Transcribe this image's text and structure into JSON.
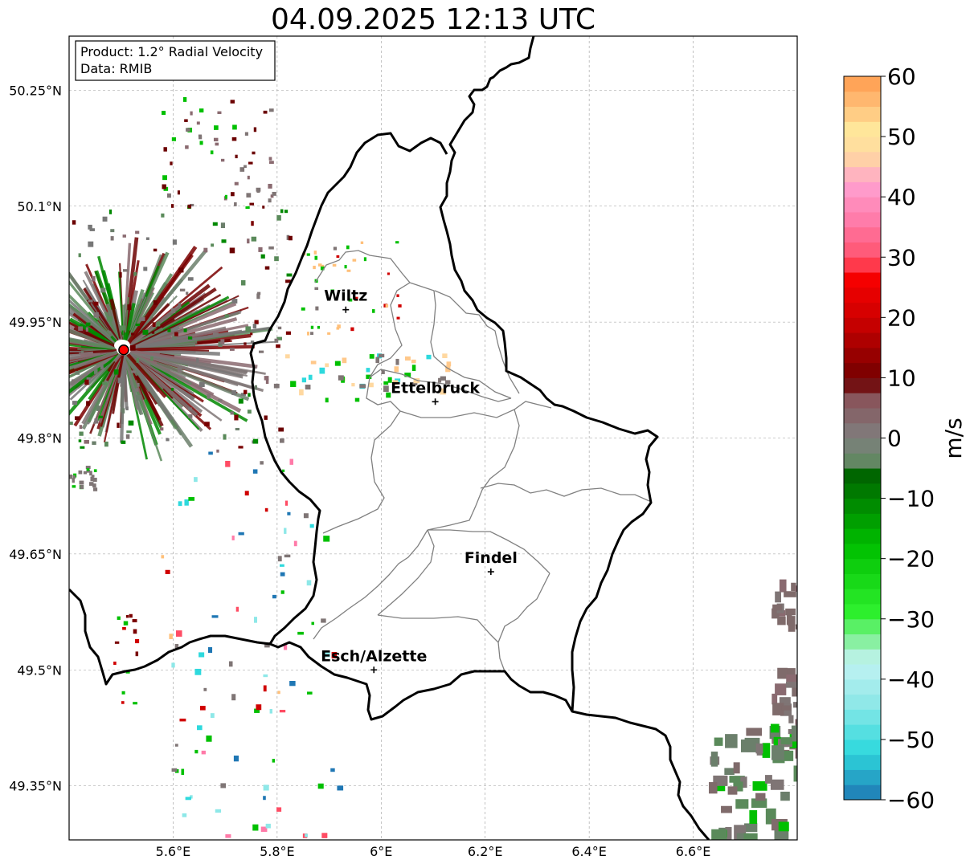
{
  "title": "04.09.2025 12:13 UTC",
  "info": {
    "product": "Product: 1.2° Radial Velocity",
    "data": "Data: RMIB"
  },
  "map_extent": {
    "lon": [
      5.4,
      6.8
    ],
    "lat": [
      49.28,
      50.32
    ]
  },
  "lat_ticks": [
    {
      "value": 50.25,
      "label": "50.25°N"
    },
    {
      "value": 50.1,
      "label": "50.1°N"
    },
    {
      "value": 49.95,
      "label": "49.95°N"
    },
    {
      "value": 49.8,
      "label": "49.8°N"
    },
    {
      "value": 49.65,
      "label": "49.65°N"
    },
    {
      "value": 49.5,
      "label": "49.5°N"
    },
    {
      "value": 49.35,
      "label": "49.35°N"
    }
  ],
  "lon_ticks": [
    {
      "value": 5.6,
      "label": "5.6°E"
    },
    {
      "value": 5.8,
      "label": "5.8°E"
    },
    {
      "value": 6.0,
      "label": "6°E"
    },
    {
      "value": 6.2,
      "label": "6.2°E"
    },
    {
      "value": 6.4,
      "label": "6.4°E"
    },
    {
      "value": 6.6,
      "label": "6.6°E"
    }
  ],
  "radar_site": {
    "lon": 5.505,
    "lat": 49.914
  },
  "cities": [
    {
      "name": "Wiltz",
      "lon": 5.932,
      "lat": 49.966
    },
    {
      "name": "Ettelbruck",
      "lon": 6.104,
      "lat": 49.847
    },
    {
      "name": "Findel",
      "lon": 6.211,
      "lat": 49.627
    },
    {
      "name": "Esch/Alzette",
      "lon": 5.986,
      "lat": 49.5
    }
  ],
  "colorbar": {
    "unit": "m/s",
    "min": -60,
    "max": 60,
    "ticks": [
      {
        "value": 60,
        "label": "60"
      },
      {
        "value": 50,
        "label": "50"
      },
      {
        "value": 40,
        "label": "40"
      },
      {
        "value": 30,
        "label": "30"
      },
      {
        "value": 20,
        "label": "20"
      },
      {
        "value": 10,
        "label": "10"
      },
      {
        "value": 0,
        "label": "0"
      },
      {
        "value": -10,
        "label": "−10"
      },
      {
        "value": -20,
        "label": "−20"
      },
      {
        "value": -30,
        "label": "−30"
      },
      {
        "value": -40,
        "label": "−40"
      },
      {
        "value": -50,
        "label": "−50"
      },
      {
        "value": -60,
        "label": "−60"
      }
    ],
    "stops": [
      {
        "value": -60,
        "color": "#1f77b4"
      },
      {
        "value": -52,
        "color": "#2ed9dd"
      },
      {
        "value": -44,
        "color": "#8ee8e8"
      },
      {
        "value": -37,
        "color": "#c3f2f2"
      },
      {
        "value": -34,
        "color": "#8ef0a8"
      },
      {
        "value": -29,
        "color": "#2ef02e"
      },
      {
        "value": -18,
        "color": "#00c000"
      },
      {
        "value": -6,
        "color": "#006400"
      },
      {
        "value": -5,
        "color": "#5a8a5a"
      },
      {
        "value": 0,
        "color": "#7f7f7f"
      },
      {
        "value": 8,
        "color": "#8a4a52"
      },
      {
        "value": 9,
        "color": "#6b0000"
      },
      {
        "value": 20,
        "color": "#d00000"
      },
      {
        "value": 28,
        "color": "#ff0000"
      },
      {
        "value": 29,
        "color": "#ff4c64"
      },
      {
        "value": 36,
        "color": "#ff7aa8"
      },
      {
        "value": 42,
        "color": "#ffa0d0"
      },
      {
        "value": 47,
        "color": "#ffd8a0"
      },
      {
        "value": 51,
        "color": "#ffe89c"
      },
      {
        "value": 55,
        "color": "#ffc07a"
      },
      {
        "value": 60,
        "color": "#ff9a4c"
      }
    ]
  }
}
